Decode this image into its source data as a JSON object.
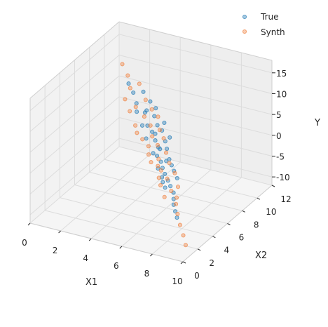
{
  "chart_data": {
    "type": "scatter",
    "projection": "3d",
    "title": "",
    "xlabel": "X1",
    "ylabel": "X2",
    "zlabel": "Y",
    "xlim": [
      0,
      10
    ],
    "ylim": [
      0,
      12
    ],
    "zlim": [
      -12,
      18
    ],
    "x_ticks": [
      0,
      2,
      4,
      6,
      8,
      10
    ],
    "y_ticks": [
      0,
      2,
      4,
      6,
      8,
      10,
      12
    ],
    "z_ticks": [
      -10,
      -5,
      0,
      5,
      10,
      15
    ],
    "grid": true,
    "legend": {
      "position": "top-right",
      "entries": [
        "True",
        "Synth"
      ]
    },
    "series": [
      {
        "name": "True",
        "color": "#1f77b4",
        "points": [
          [
            1.2,
            10.8,
            6.1
          ],
          [
            1.8,
            10.2,
            5.4
          ],
          [
            2.3,
            9.6,
            4.2
          ],
          [
            2.6,
            9.9,
            6.8
          ],
          [
            3.1,
            9.1,
            3.5
          ],
          [
            3.4,
            8.7,
            4.9
          ],
          [
            3.7,
            8.2,
            2.3
          ],
          [
            3.9,
            8.9,
            5.6
          ],
          [
            4.2,
            7.8,
            1.9
          ],
          [
            4.4,
            8.1,
            3.2
          ],
          [
            4.6,
            7.4,
            0.8
          ],
          [
            4.8,
            7.9,
            2.6
          ],
          [
            5.0,
            7.0,
            0.1
          ],
          [
            5.1,
            6.6,
            -1.2
          ],
          [
            5.3,
            7.3,
            1.4
          ],
          [
            5.5,
            6.3,
            -1.8
          ],
          [
            5.6,
            6.9,
            0.5
          ],
          [
            5.8,
            5.9,
            -2.4
          ],
          [
            6.0,
            6.4,
            -0.9
          ],
          [
            6.1,
            5.6,
            -3.1
          ],
          [
            6.3,
            6.1,
            -1.6
          ],
          [
            6.5,
            5.2,
            -3.7
          ],
          [
            6.6,
            5.8,
            -2.2
          ],
          [
            6.8,
            4.9,
            -4.3
          ],
          [
            7.0,
            5.4,
            -3.0
          ],
          [
            7.2,
            4.5,
            -4.9
          ],
          [
            7.4,
            4.1,
            -5.6
          ],
          [
            7.6,
            3.7,
            -6.2
          ],
          [
            7.9,
            3.3,
            -6.9
          ],
          [
            8.2,
            2.9,
            -7.5
          ],
          [
            4.0,
            8.5,
            4.4
          ],
          [
            4.5,
            7.6,
            2.0
          ],
          [
            5.2,
            6.8,
            0.2
          ],
          [
            5.9,
            6.2,
            -1.1
          ],
          [
            6.2,
            5.0,
            -2.9
          ],
          [
            4.1,
            7.2,
            1.1
          ],
          [
            4.9,
            6.5,
            -0.6
          ],
          [
            5.7,
            5.5,
            -2.0
          ],
          [
            6.4,
            4.7,
            -3.4
          ],
          [
            3.6,
            7.7,
            3.0
          ],
          [
            2.9,
            8.4,
            4.6
          ],
          [
            3.3,
            9.4,
            5.9
          ],
          [
            4.7,
            8.4,
            3.6
          ],
          [
            5.4,
            7.7,
            1.8
          ],
          [
            6.7,
            4.4,
            -4.0
          ]
        ]
      },
      {
        "name": "Synth",
        "color": "#f07f3c",
        "points": [
          [
            0.4,
            11.6,
            8.8
          ],
          [
            1.0,
            11.1,
            7.4
          ],
          [
            1.5,
            10.4,
            5.9
          ],
          [
            2.0,
            10.6,
            7.1
          ],
          [
            2.4,
            9.3,
            3.9
          ],
          [
            2.8,
            9.8,
            5.2
          ],
          [
            3.2,
            8.8,
            3.1
          ],
          [
            3.5,
            9.2,
            4.5
          ],
          [
            3.8,
            8.4,
            2.1
          ],
          [
            4.1,
            8.8,
            3.9
          ],
          [
            4.3,
            7.6,
            1.2
          ],
          [
            4.6,
            8.0,
            2.4
          ],
          [
            4.9,
            7.1,
            0.4
          ],
          [
            5.1,
            7.5,
            1.6
          ],
          [
            5.3,
            6.4,
            -1.5
          ],
          [
            5.6,
            6.8,
            -0.3
          ],
          [
            5.8,
            5.7,
            -2.7
          ],
          [
            6.1,
            6.2,
            -1.4
          ],
          [
            6.4,
            5.3,
            -3.5
          ],
          [
            6.7,
            5.7,
            -2.5
          ],
          [
            7.0,
            4.6,
            -4.8
          ],
          [
            7.3,
            4.9,
            -4.0
          ],
          [
            7.7,
            3.8,
            -6.1
          ],
          [
            8.1,
            3.2,
            -7.2
          ],
          [
            8.6,
            2.5,
            -8.3
          ],
          [
            9.1,
            1.9,
            -9.4
          ],
          [
            9.5,
            1.4,
            -10.6
          ],
          [
            3.0,
            8.0,
            2.0
          ],
          [
            4.4,
            6.9,
            0.0
          ],
          [
            5.5,
            5.9,
            -2.2
          ],
          [
            6.3,
            4.6,
            -4.1
          ],
          [
            2.2,
            8.9,
            3.3
          ],
          [
            3.9,
            7.1,
            0.9
          ],
          [
            5.0,
            6.0,
            -1.9
          ],
          [
            6.9,
            3.9,
            -5.3
          ],
          [
            1.6,
            9.5,
            4.7
          ],
          [
            3.4,
            7.4,
            1.5
          ],
          [
            4.7,
            6.3,
            -0.8
          ],
          [
            6.0,
            5.0,
            -3.2
          ],
          [
            7.5,
            4.3,
            -5.5
          ]
        ]
      }
    ]
  }
}
